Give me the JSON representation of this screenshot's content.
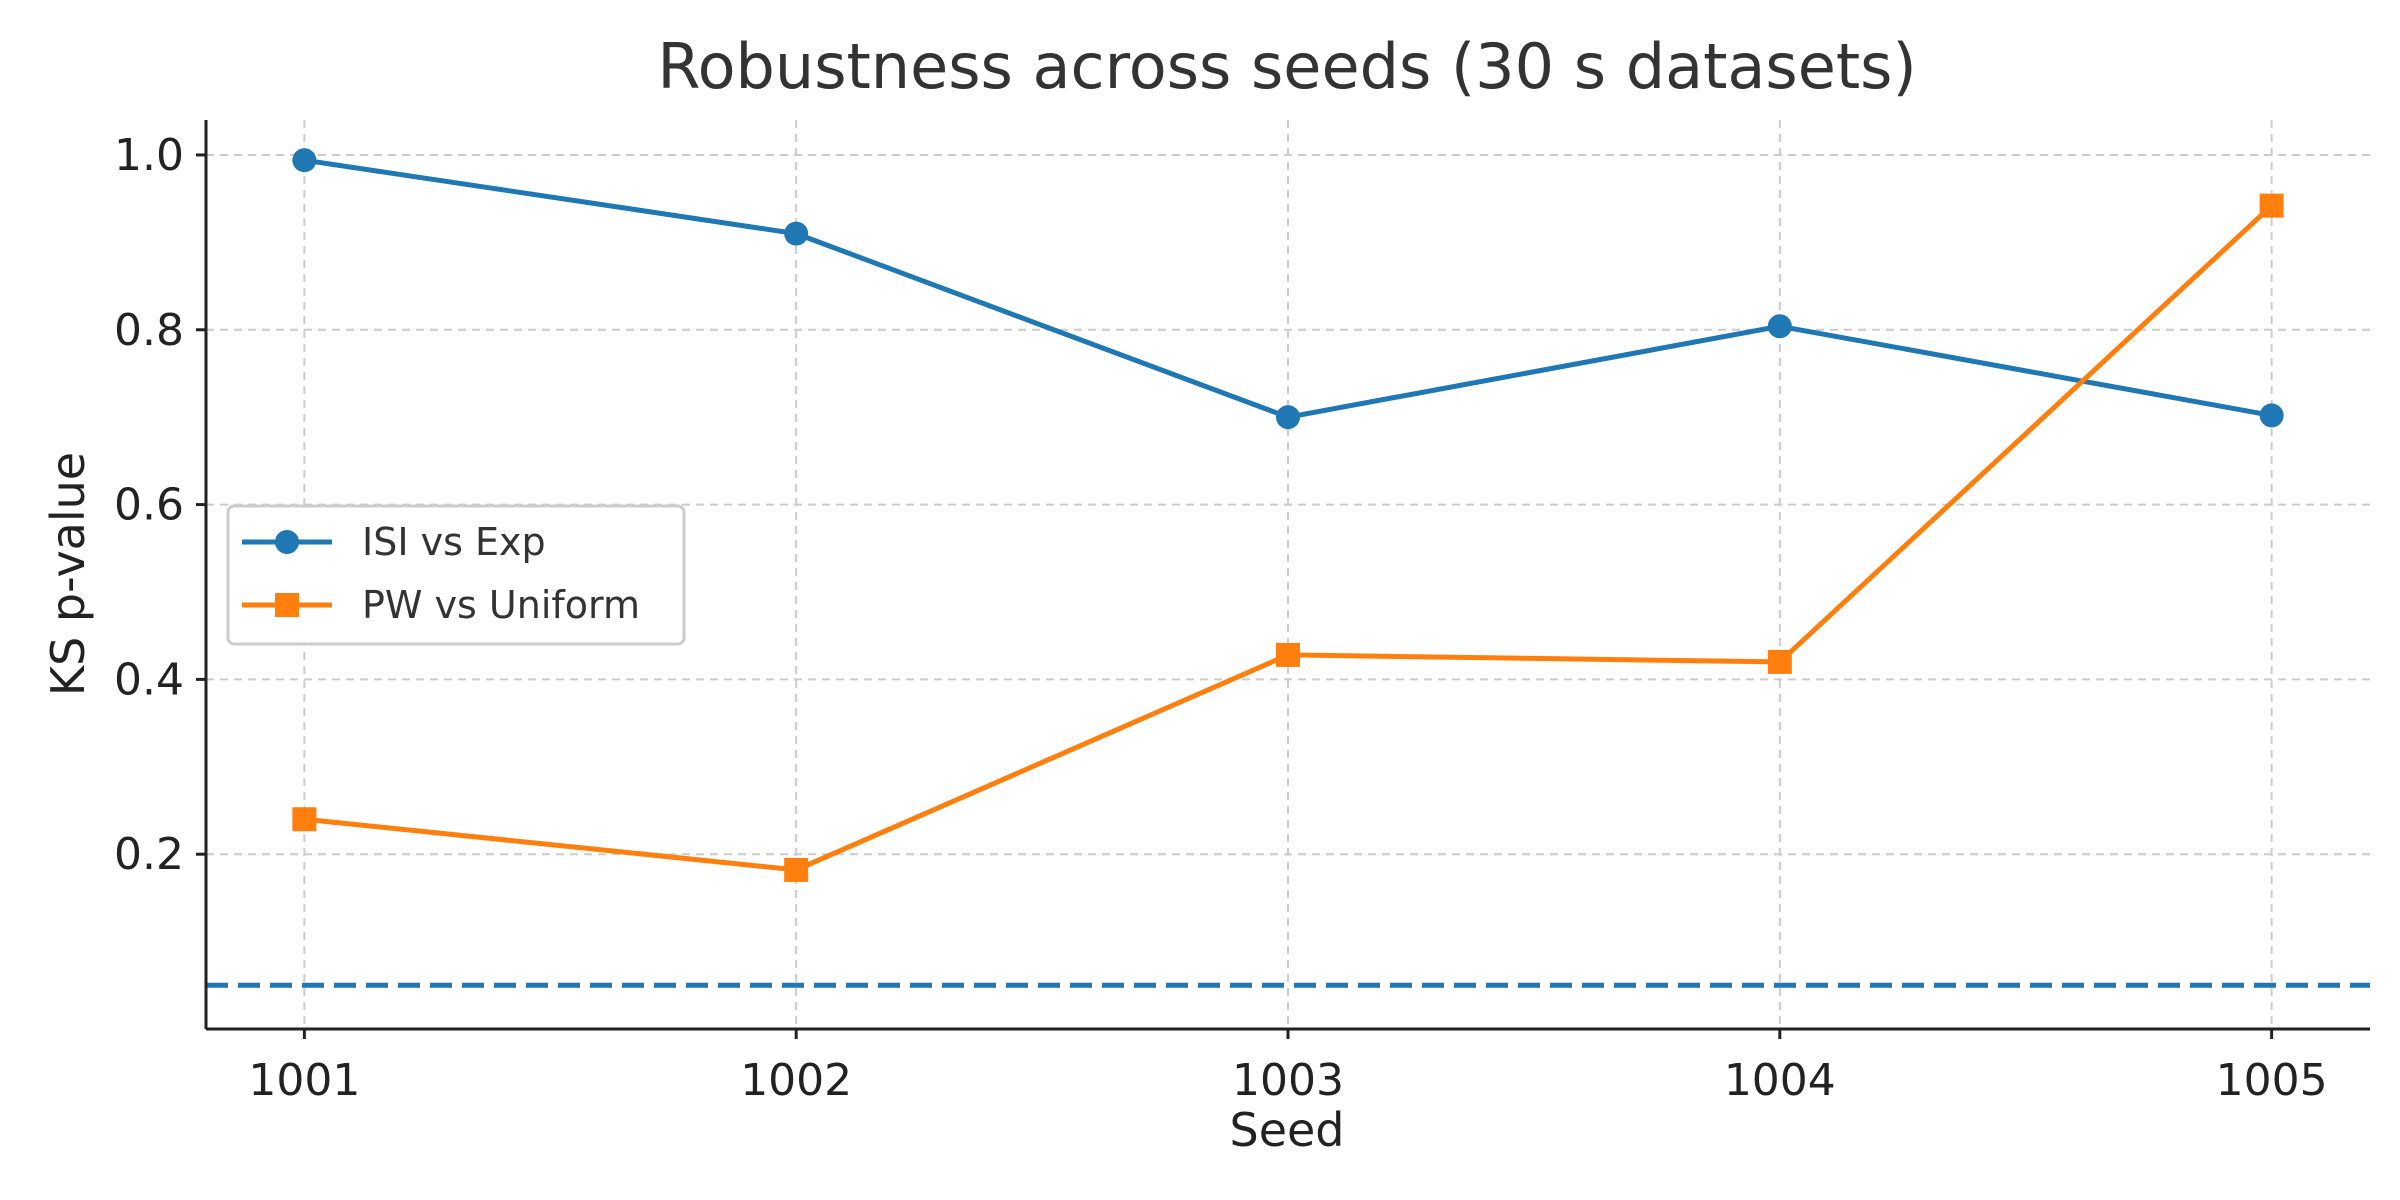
{
  "chart_data": {
    "type": "line",
    "title": "Robustness across seeds (30 s datasets)",
    "xlabel": "Seed",
    "ylabel": "KS p-value",
    "categories": [
      "1001",
      "1002",
      "1003",
      "1004",
      "1005"
    ],
    "x": [
      1001,
      1002,
      1003,
      1004,
      1005
    ],
    "xlim": [
      1000.8,
      1005.2
    ],
    "ylim": [
      0.0,
      1.04
    ],
    "yticks": [
      0.2,
      0.4,
      0.6,
      0.8,
      1.0
    ],
    "ytick_labels": [
      "0.2",
      "0.4",
      "0.6",
      "0.8",
      "1.0"
    ],
    "grid": true,
    "legend_position": "center-left",
    "series": [
      {
        "name": "ISI vs Exp",
        "values": [
          0.994,
          0.91,
          0.7,
          0.804,
          0.702
        ],
        "color": "#1f77b4",
        "marker": "circle"
      },
      {
        "name": "PW vs Uniform",
        "values": [
          0.24,
          0.182,
          0.428,
          0.42,
          0.942
        ],
        "color": "#ff7f0e",
        "marker": "square"
      }
    ],
    "reference_line": {
      "y": 0.05,
      "style": "dashed",
      "color": "#1f77b4"
    }
  }
}
